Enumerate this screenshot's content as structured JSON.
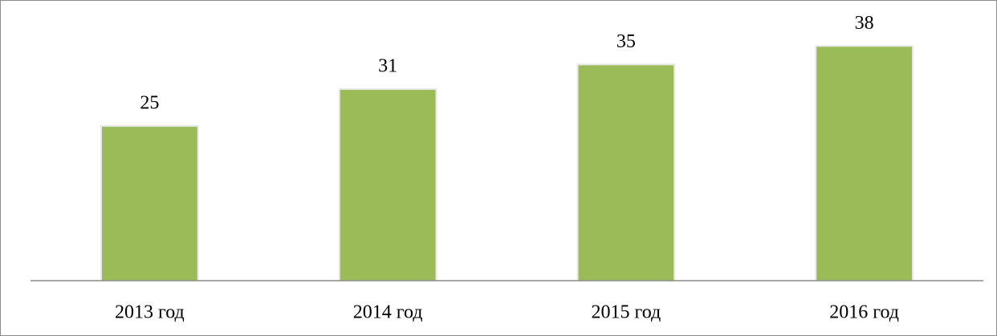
{
  "chart_data": {
    "type": "bar",
    "categories": [
      "2013 год",
      "2014 год",
      "2015 год",
      "2016 год"
    ],
    "values": [
      25,
      31,
      35,
      38
    ],
    "color": "#9bbb59",
    "ylim": [
      0,
      40
    ]
  }
}
